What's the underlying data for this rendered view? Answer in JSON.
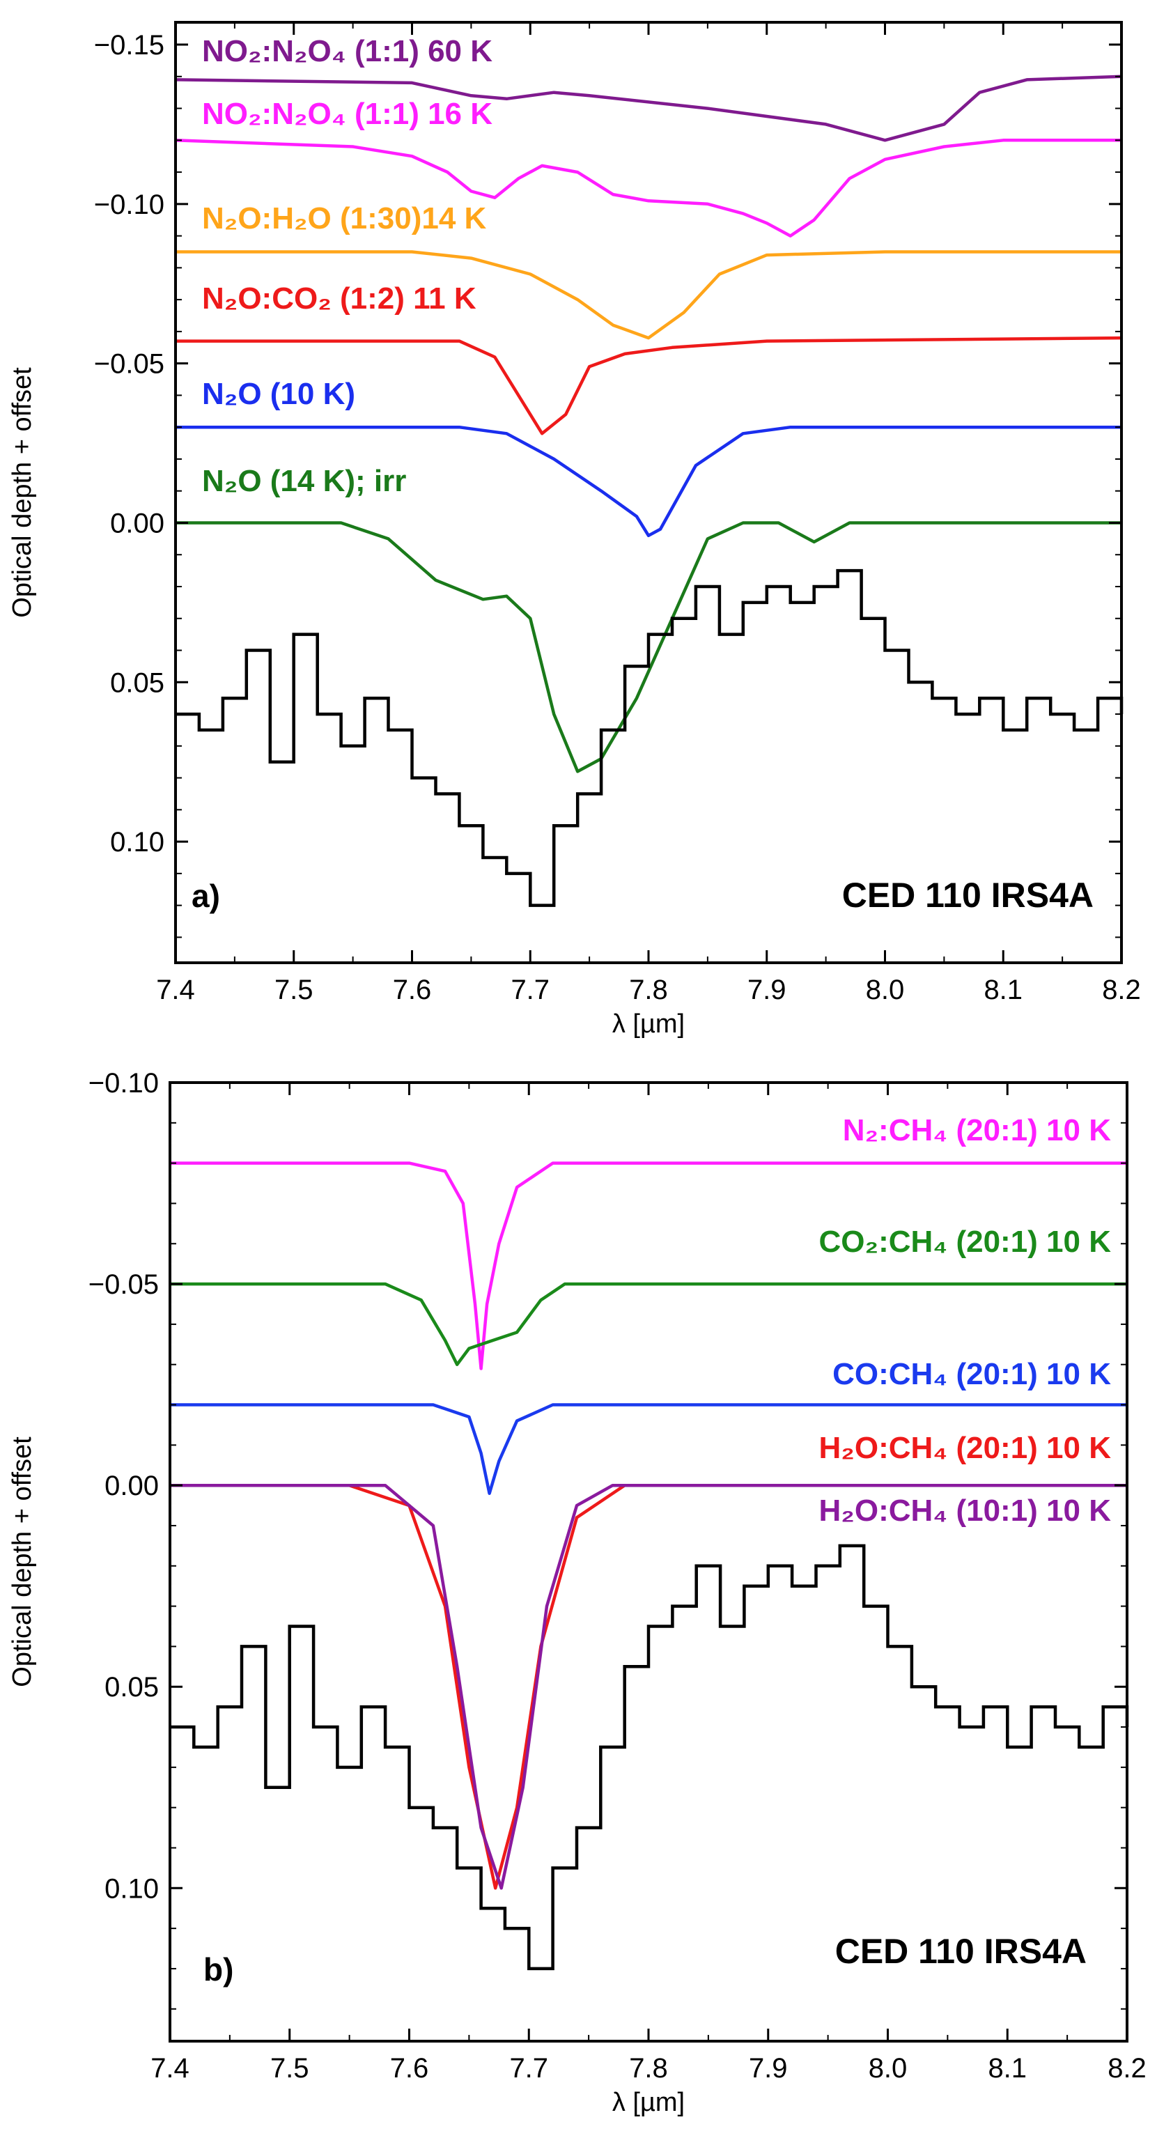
{
  "chart_data": [
    {
      "type": "line",
      "panel": "a)",
      "title": "",
      "xlabel": "λ [µm]",
      "ylabel": "Optical depth + offset",
      "xlim": [
        7.4,
        8.2
      ],
      "ylim": [
        0.138,
        -0.157
      ],
      "y_inverted": true,
      "xticks": [
        7.4,
        7.5,
        7.6,
        7.7,
        7.8,
        7.9,
        8.0,
        8.1,
        8.2
      ],
      "xtick_labels": [
        "7.4",
        "7.5",
        "7.6",
        "7.7",
        "7.8",
        "7.9",
        "8.0",
        "8.1",
        "8.2"
      ],
      "yticks": [
        -0.15,
        -0.1,
        -0.05,
        0.0,
        0.05,
        0.1
      ],
      "ytick_labels": [
        "−0.15",
        "−0.10",
        "−0.05",
        "0.00",
        "0.05",
        "0.10"
      ],
      "annotation": "CED 110 IRS4A",
      "observed": {
        "color": "#000000",
        "points": [
          [
            7.4,
            0.06
          ],
          [
            7.42,
            0.065
          ],
          [
            7.44,
            0.055
          ],
          [
            7.46,
            0.04
          ],
          [
            7.48,
            0.075
          ],
          [
            7.5,
            0.035
          ],
          [
            7.52,
            0.06
          ],
          [
            7.54,
            0.07
          ],
          [
            7.56,
            0.055
          ],
          [
            7.58,
            0.065
          ],
          [
            7.6,
            0.08
          ],
          [
            7.62,
            0.085
          ],
          [
            7.64,
            0.095
          ],
          [
            7.66,
            0.105
          ],
          [
            7.68,
            0.11
          ],
          [
            7.7,
            0.12
          ],
          [
            7.72,
            0.095
          ],
          [
            7.74,
            0.085
          ],
          [
            7.76,
            0.065
          ],
          [
            7.78,
            0.045
          ],
          [
            7.8,
            0.035
          ],
          [
            7.82,
            0.03
          ],
          [
            7.84,
            0.02
          ],
          [
            7.86,
            0.035
          ],
          [
            7.88,
            0.025
          ],
          [
            7.9,
            0.02
          ],
          [
            7.92,
            0.025
          ],
          [
            7.94,
            0.02
          ],
          [
            7.96,
            0.015
          ],
          [
            7.98,
            0.03
          ],
          [
            8.0,
            0.04
          ],
          [
            8.02,
            0.05
          ],
          [
            8.04,
            0.055
          ],
          [
            8.06,
            0.06
          ],
          [
            8.08,
            0.055
          ],
          [
            8.1,
            0.065
          ],
          [
            8.12,
            0.055
          ],
          [
            8.14,
            0.06
          ],
          [
            8.16,
            0.065
          ],
          [
            8.18,
            0.055
          ],
          [
            8.2,
            0.06
          ]
        ]
      },
      "series": [
        {
          "name": "NO₂:N₂O₄ (1:1) 60 K",
          "color": "#7f1a8e",
          "points": [
            [
              7.4,
              -0.139
            ],
            [
              7.6,
              -0.138
            ],
            [
              7.65,
              -0.134
            ],
            [
              7.68,
              -0.133
            ],
            [
              7.72,
              -0.135
            ],
            [
              7.75,
              -0.134
            ],
            [
              7.85,
              -0.13
            ],
            [
              7.95,
              -0.125
            ],
            [
              8.0,
              -0.12
            ],
            [
              8.05,
              -0.125
            ],
            [
              8.08,
              -0.135
            ],
            [
              8.12,
              -0.139
            ],
            [
              8.2,
              -0.14
            ]
          ]
        },
        {
          "name": "NO₂:N₂O₄ (1:1) 16 K",
          "color": "#ff1eff",
          "points": [
            [
              7.4,
              -0.12
            ],
            [
              7.55,
              -0.118
            ],
            [
              7.6,
              -0.115
            ],
            [
              7.63,
              -0.11
            ],
            [
              7.65,
              -0.104
            ],
            [
              7.67,
              -0.102
            ],
            [
              7.69,
              -0.108
            ],
            [
              7.71,
              -0.112
            ],
            [
              7.74,
              -0.11
            ],
            [
              7.77,
              -0.103
            ],
            [
              7.8,
              -0.101
            ],
            [
              7.85,
              -0.1
            ],
            [
              7.88,
              -0.097
            ],
            [
              7.9,
              -0.094
            ],
            [
              7.92,
              -0.09
            ],
            [
              7.94,
              -0.095
            ],
            [
              7.97,
              -0.108
            ],
            [
              8.0,
              -0.114
            ],
            [
              8.05,
              -0.118
            ],
            [
              8.1,
              -0.12
            ],
            [
              8.2,
              -0.12
            ]
          ]
        },
        {
          "name": "N₂O:H₂O (1:30)14 K",
          "color": "#ffa51a",
          "points": [
            [
              7.4,
              -0.085
            ],
            [
              7.6,
              -0.085
            ],
            [
              7.65,
              -0.083
            ],
            [
              7.7,
              -0.078
            ],
            [
              7.74,
              -0.07
            ],
            [
              7.77,
              -0.062
            ],
            [
              7.8,
              -0.058
            ],
            [
              7.83,
              -0.066
            ],
            [
              7.86,
              -0.078
            ],
            [
              7.9,
              -0.084
            ],
            [
              8.0,
              -0.085
            ],
            [
              8.2,
              -0.085
            ]
          ]
        },
        {
          "name": "N₂O:CO₂ (1:2) 11 K",
          "color": "#ee1a1a",
          "points": [
            [
              7.4,
              -0.057
            ],
            [
              7.64,
              -0.057
            ],
            [
              7.67,
              -0.052
            ],
            [
              7.69,
              -0.04
            ],
            [
              7.71,
              -0.028
            ],
            [
              7.73,
              -0.034
            ],
            [
              7.75,
              -0.049
            ],
            [
              7.78,
              -0.053
            ],
            [
              7.82,
              -0.055
            ],
            [
              7.9,
              -0.057
            ],
            [
              8.2,
              -0.058
            ]
          ]
        },
        {
          "name": "N₂O (10 K)",
          "color": "#1a2eee",
          "points": [
            [
              7.4,
              -0.03
            ],
            [
              7.64,
              -0.03
            ],
            [
              7.68,
              -0.028
            ],
            [
              7.72,
              -0.02
            ],
            [
              7.76,
              -0.01
            ],
            [
              7.79,
              -0.002
            ],
            [
              7.8,
              0.004
            ],
            [
              7.81,
              0.002
            ],
            [
              7.84,
              -0.018
            ],
            [
              7.88,
              -0.028
            ],
            [
              7.92,
              -0.03
            ],
            [
              8.2,
              -0.03
            ]
          ]
        },
        {
          "name": "N₂O (14 K); irr",
          "color": "#1a7a1a",
          "points": [
            [
              7.4,
              0.0
            ],
            [
              7.54,
              0.0
            ],
            [
              7.58,
              0.005
            ],
            [
              7.62,
              0.018
            ],
            [
              7.66,
              0.024
            ],
            [
              7.68,
              0.023
            ],
            [
              7.7,
              0.03
            ],
            [
              7.72,
              0.06
            ],
            [
              7.74,
              0.078
            ],
            [
              7.76,
              0.074
            ],
            [
              7.79,
              0.055
            ],
            [
              7.82,
              0.03
            ],
            [
              7.85,
              0.005
            ],
            [
              7.88,
              0.0
            ],
            [
              7.91,
              0.0
            ],
            [
              7.94,
              0.006
            ],
            [
              7.97,
              0.0
            ],
            [
              8.2,
              0.0
            ]
          ]
        }
      ]
    },
    {
      "type": "line",
      "panel": "b)",
      "title": "",
      "xlabel": "λ [µm]",
      "ylabel": "Optical depth + offset",
      "xlim": [
        7.4,
        8.2
      ],
      "ylim": [
        0.138,
        -0.1
      ],
      "y_inverted": true,
      "xticks": [
        7.4,
        7.5,
        7.6,
        7.7,
        7.8,
        7.9,
        8.0,
        8.1,
        8.2
      ],
      "xtick_labels": [
        "7.4",
        "7.5",
        "7.6",
        "7.7",
        "7.8",
        "7.9",
        "8.0",
        "8.1",
        "8.2"
      ],
      "yticks": [
        -0.1,
        -0.05,
        0.0,
        0.05,
        0.1
      ],
      "ytick_labels": [
        "−0.10",
        "−0.05",
        "0.00",
        "0.05",
        "0.10"
      ],
      "annotation": "CED 110 IRS4A",
      "observed": {
        "color": "#000000",
        "points": [
          [
            7.4,
            0.06
          ],
          [
            7.42,
            0.065
          ],
          [
            7.44,
            0.055
          ],
          [
            7.46,
            0.04
          ],
          [
            7.48,
            0.075
          ],
          [
            7.5,
            0.035
          ],
          [
            7.52,
            0.06
          ],
          [
            7.54,
            0.07
          ],
          [
            7.56,
            0.055
          ],
          [
            7.58,
            0.065
          ],
          [
            7.6,
            0.08
          ],
          [
            7.62,
            0.085
          ],
          [
            7.64,
            0.095
          ],
          [
            7.66,
            0.105
          ],
          [
            7.68,
            0.11
          ],
          [
            7.7,
            0.12
          ],
          [
            7.72,
            0.095
          ],
          [
            7.74,
            0.085
          ],
          [
            7.76,
            0.065
          ],
          [
            7.78,
            0.045
          ],
          [
            7.8,
            0.035
          ],
          [
            7.82,
            0.03
          ],
          [
            7.84,
            0.02
          ],
          [
            7.86,
            0.035
          ],
          [
            7.88,
            0.025
          ],
          [
            7.9,
            0.02
          ],
          [
            7.92,
            0.025
          ],
          [
            7.94,
            0.02
          ],
          [
            7.96,
            0.015
          ],
          [
            7.98,
            0.03
          ],
          [
            8.0,
            0.04
          ],
          [
            8.02,
            0.05
          ],
          [
            8.04,
            0.055
          ],
          [
            8.06,
            0.06
          ],
          [
            8.08,
            0.055
          ],
          [
            8.1,
            0.065
          ],
          [
            8.12,
            0.055
          ],
          [
            8.14,
            0.06
          ],
          [
            8.16,
            0.065
          ],
          [
            8.18,
            0.055
          ],
          [
            8.2,
            0.06
          ]
        ]
      },
      "series": [
        {
          "name": "N₂:CH₄ (20:1) 10 K",
          "color": "#ff1eff",
          "points": [
            [
              7.4,
              -0.08
            ],
            [
              7.6,
              -0.08
            ],
            [
              7.63,
              -0.078
            ],
            [
              7.645,
              -0.07
            ],
            [
              7.655,
              -0.045
            ],
            [
              7.66,
              -0.029
            ],
            [
              7.665,
              -0.045
            ],
            [
              7.675,
              -0.06
            ],
            [
              7.69,
              -0.074
            ],
            [
              7.72,
              -0.08
            ],
            [
              8.2,
              -0.08
            ]
          ]
        },
        {
          "name": "CO₂:CH₄ (20:1) 10 K",
          "color": "#1a8a1a",
          "points": [
            [
              7.4,
              -0.05
            ],
            [
              7.58,
              -0.05
            ],
            [
              7.61,
              -0.046
            ],
            [
              7.63,
              -0.036
            ],
            [
              7.64,
              -0.03
            ],
            [
              7.65,
              -0.034
            ],
            [
              7.67,
              -0.036
            ],
            [
              7.69,
              -0.038
            ],
            [
              7.71,
              -0.046
            ],
            [
              7.73,
              -0.05
            ],
            [
              8.2,
              -0.05
            ]
          ]
        },
        {
          "name": "CO:CH₄ (20:1) 10 K",
          "color": "#1a3aee",
          "points": [
            [
              7.4,
              -0.02
            ],
            [
              7.62,
              -0.02
            ],
            [
              7.65,
              -0.017
            ],
            [
              7.66,
              -0.008
            ],
            [
              7.667,
              0.002
            ],
            [
              7.675,
              -0.006
            ],
            [
              7.69,
              -0.016
            ],
            [
              7.72,
              -0.02
            ],
            [
              8.2,
              -0.02
            ]
          ]
        },
        {
          "name": "H₂O:CH₄ (20:1) 10 K",
          "color": "#ee1a1a",
          "points": [
            [
              7.4,
              0.0
            ],
            [
              7.55,
              0.0
            ],
            [
              7.6,
              0.005
            ],
            [
              7.63,
              0.03
            ],
            [
              7.65,
              0.07
            ],
            [
              7.672,
              0.1
            ],
            [
              7.69,
              0.08
            ],
            [
              7.71,
              0.04
            ],
            [
              7.74,
              0.008
            ],
            [
              7.78,
              0.0
            ],
            [
              8.2,
              0.0
            ]
          ]
        },
        {
          "name": "H₂O:CH₄ (10:1) 10 K",
          "color": "#8a1a9e",
          "points": [
            [
              7.4,
              0.0
            ],
            [
              7.58,
              0.0
            ],
            [
              7.62,
              0.01
            ],
            [
              7.64,
              0.045
            ],
            [
              7.66,
              0.085
            ],
            [
              7.677,
              0.1
            ],
            [
              7.695,
              0.075
            ],
            [
              7.715,
              0.03
            ],
            [
              7.74,
              0.005
            ],
            [
              7.77,
              0.0
            ],
            [
              8.2,
              0.0
            ]
          ]
        }
      ]
    }
  ]
}
